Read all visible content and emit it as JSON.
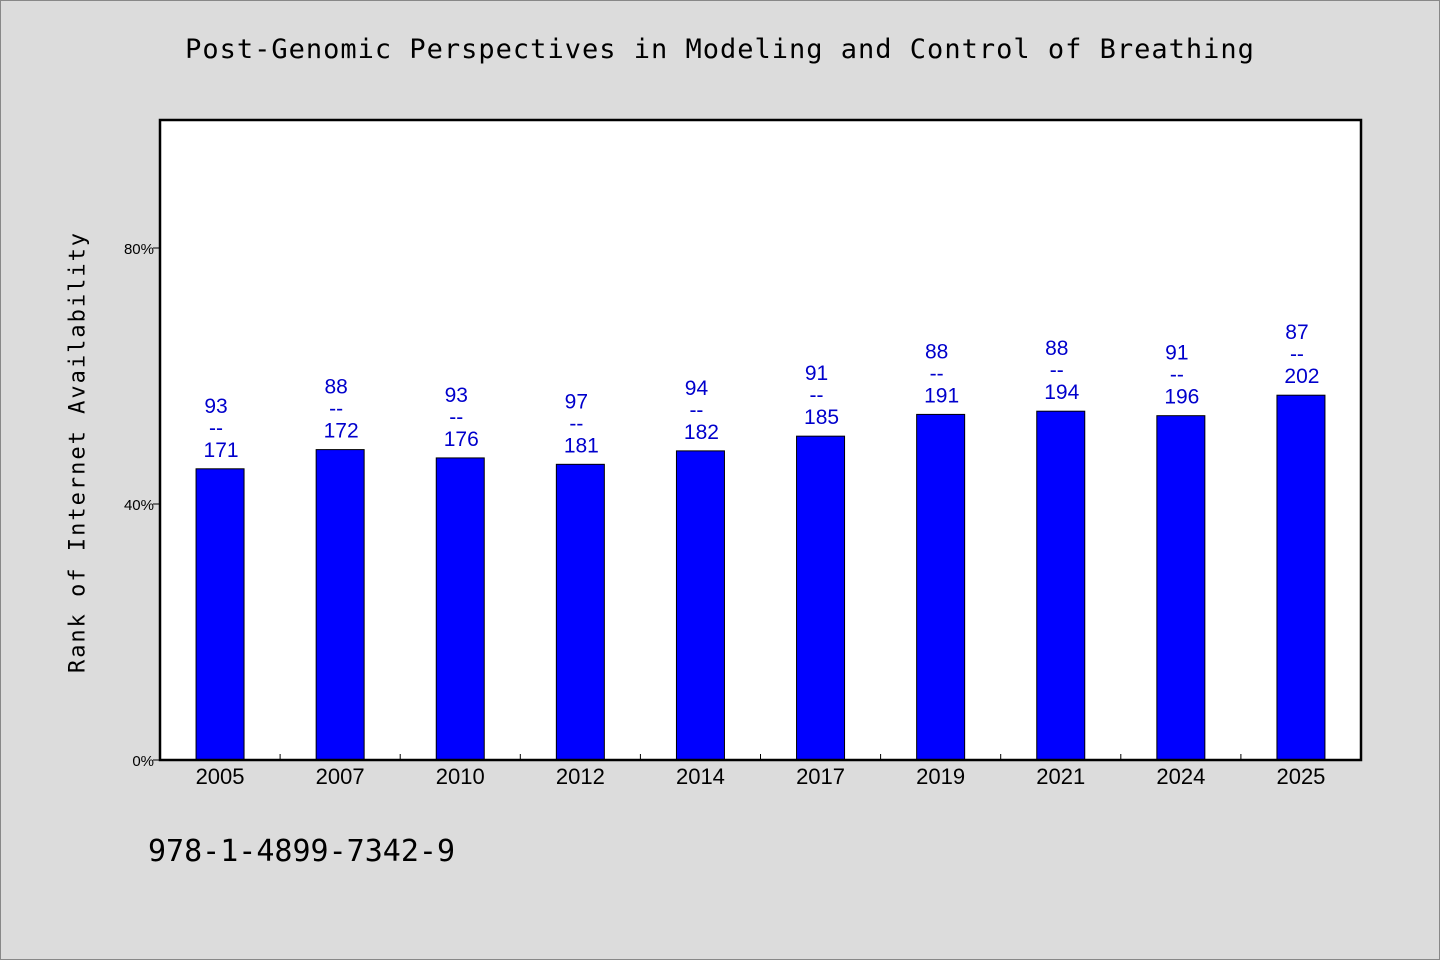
{
  "chart_data": {
    "type": "bar",
    "title": "Post-Genomic Perspectives in Modeling and Control of Breathing",
    "ylabel": "Rank of Internet Availability",
    "xlabel": "",
    "ylim": [
      0,
      100
    ],
    "yticks": [
      {
        "value": 0,
        "label": "0%"
      },
      {
        "value": 40,
        "label": "40%"
      },
      {
        "value": 80,
        "label": "80%"
      }
    ],
    "categories": [
      "2005",
      "2007",
      "2010",
      "2012",
      "2014",
      "2017",
      "2019",
      "2021",
      "2024",
      "2025"
    ],
    "values": [
      45.5,
      48.5,
      47.2,
      46.2,
      48.3,
      50.6,
      54.0,
      54.5,
      53.8,
      57.0
    ],
    "bar_labels": [
      {
        "top": "93",
        "sep": "--",
        "bottom": "171"
      },
      {
        "top": "88",
        "sep": "--",
        "bottom": "172"
      },
      {
        "top": "93",
        "sep": "--",
        "bottom": "176"
      },
      {
        "top": "97",
        "sep": "--",
        "bottom": "181"
      },
      {
        "top": "94",
        "sep": "--",
        "bottom": "182"
      },
      {
        "top": "91",
        "sep": "--",
        "bottom": "185"
      },
      {
        "top": "88",
        "sep": "--",
        "bottom": "191"
      },
      {
        "top": "88",
        "sep": "--",
        "bottom": "194"
      },
      {
        "top": "91",
        "sep": "--",
        "bottom": "196"
      },
      {
        "top": "87",
        "sep": "--",
        "bottom": "202"
      }
    ],
    "colors": {
      "bar": "#0000ff",
      "label": "#0000cc",
      "plot_bg": "#ffffff",
      "page_bg": "#dcdcdc"
    },
    "grid": false,
    "legend": "none"
  },
  "footnote": "978-1-4899-7342-9"
}
